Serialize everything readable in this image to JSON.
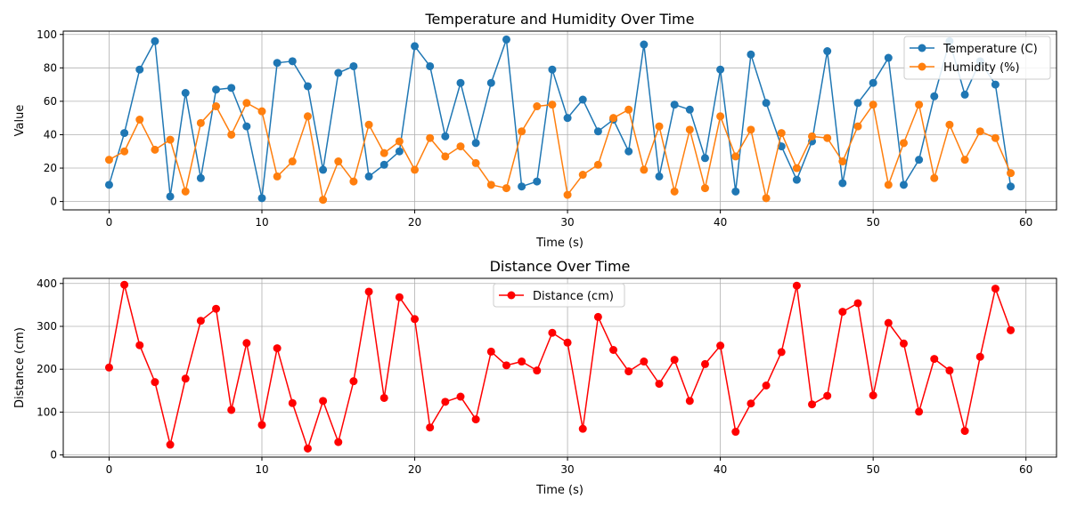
{
  "chart_data": [
    {
      "type": "line",
      "title": "Temperature and Humidity Over Time",
      "xlabel": "Time (s)",
      "ylabel": "Value",
      "xlim": [
        -3,
        62
      ],
      "ylim": [
        -5,
        102
      ],
      "xticks": [
        0,
        10,
        20,
        30,
        40,
        50,
        60
      ],
      "yticks": [
        0,
        20,
        40,
        60,
        80,
        100
      ],
      "grid": true,
      "legend_position": "top-right",
      "x": [
        0,
        1,
        2,
        3,
        4,
        5,
        6,
        7,
        8,
        9,
        10,
        11,
        12,
        13,
        14,
        15,
        16,
        17,
        18,
        19,
        20,
        21,
        22,
        23,
        24,
        25,
        26,
        27,
        28,
        29,
        30,
        31,
        32,
        33,
        34,
        35,
        36,
        37,
        38,
        39,
        40,
        41,
        42,
        43,
        44,
        45,
        46,
        47,
        48,
        49,
        50,
        51,
        52,
        53,
        54,
        55,
        56,
        57,
        58,
        59
      ],
      "series": [
        {
          "name": "Temperature (C)",
          "color": "#1f77b4",
          "values": [
            10,
            41,
            79,
            96,
            3,
            65,
            14,
            67,
            68,
            45,
            2,
            83,
            84,
            69,
            19,
            77,
            81,
            15,
            22,
            30,
            93,
            81,
            39,
            71,
            35,
            71,
            97,
            9,
            12,
            79,
            50,
            61,
            42,
            49,
            30,
            94,
            15,
            58,
            55,
            26,
            79,
            6,
            88,
            59,
            33,
            13,
            36,
            90,
            11,
            59,
            71,
            86,
            10,
            25,
            63,
            96,
            64,
            84,
            70,
            9
          ]
        },
        {
          "name": "Humidity (%)",
          "color": "#ff7f0e",
          "values": [
            25,
            30,
            49,
            31,
            37,
            6,
            47,
            57,
            40,
            59,
            54,
            15,
            24,
            51,
            1,
            24,
            12,
            46,
            29,
            36,
            19,
            38,
            27,
            33,
            23,
            10,
            8,
            42,
            57,
            58,
            4,
            16,
            22,
            50,
            55,
            19,
            45,
            6,
            43,
            8,
            51,
            27,
            43,
            2,
            41,
            20,
            39,
            38,
            24,
            45,
            58,
            10,
            35,
            58,
            14,
            46,
            25,
            42,
            38,
            17
          ]
        }
      ]
    },
    {
      "type": "line",
      "title": "Distance Over Time",
      "xlabel": "Time (s)",
      "ylabel": "Distance (cm)",
      "xlim": [
        -3,
        62
      ],
      "ylim": [
        -5,
        412
      ],
      "xticks": [
        0,
        10,
        20,
        30,
        40,
        50,
        60
      ],
      "yticks": [
        0,
        100,
        200,
        300,
        400
      ],
      "grid": true,
      "legend_position": "top-center",
      "x": [
        0,
        1,
        2,
        3,
        4,
        5,
        6,
        7,
        8,
        9,
        10,
        11,
        12,
        13,
        14,
        15,
        16,
        17,
        18,
        19,
        20,
        21,
        22,
        23,
        24,
        25,
        26,
        27,
        28,
        29,
        30,
        31,
        32,
        33,
        34,
        35,
        36,
        37,
        38,
        39,
        40,
        41,
        42,
        43,
        44,
        45,
        46,
        47,
        48,
        49,
        50,
        51,
        52,
        53,
        54,
        55,
        56,
        57,
        58,
        59
      ],
      "series": [
        {
          "name": "Distance (cm)",
          "color": "#ff0000",
          "values": [
            204,
            397,
            256,
            170,
            24,
            178,
            313,
            341,
            105,
            261,
            70,
            249,
            121,
            15,
            126,
            30,
            172,
            381,
            133,
            368,
            317,
            64,
            124,
            136,
            83,
            241,
            209,
            218,
            197,
            285,
            262,
            61,
            322,
            245,
            195,
            218,
            166,
            222,
            126,
            212,
            255,
            54,
            120,
            162,
            240,
            395,
            118,
            138,
            334,
            354,
            139,
            308,
            260,
            101,
            224,
            197,
            56,
            229,
            388,
            291
          ]
        }
      ]
    }
  ]
}
